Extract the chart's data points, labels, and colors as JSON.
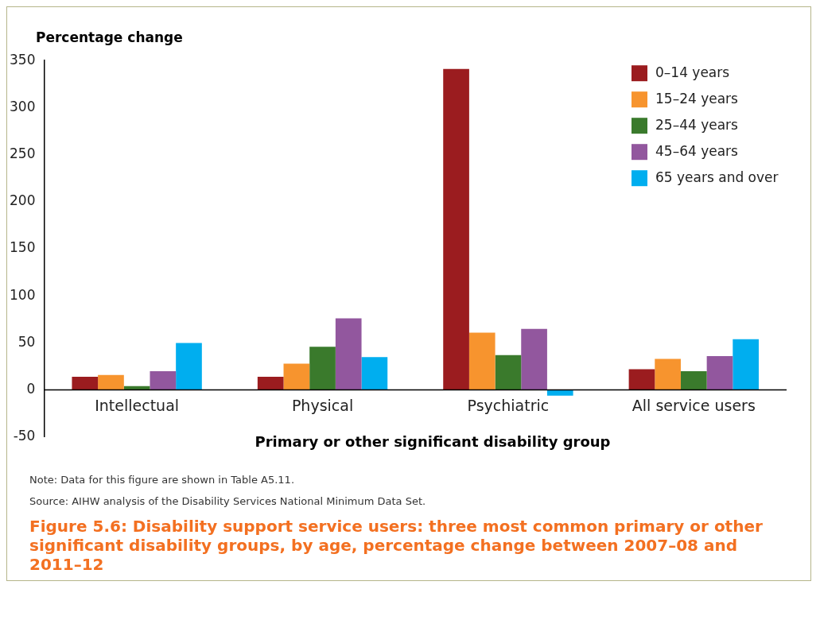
{
  "chart_data": {
    "type": "bar",
    "title": "Figure 5.6: Disability support service users: three most common primary or other significant disability groups, by age, percentage change between 2007–08 and 2011–12",
    "ylabel": "Percentage change",
    "xlabel": "Primary or other significant disability group",
    "categories": [
      "Intellectual",
      "Physical",
      "Psychiatric",
      "All service users"
    ],
    "series": [
      {
        "name": "0–14 years",
        "color": "#9b1c1f",
        "values": [
          14,
          14,
          341,
          22
        ]
      },
      {
        "name": "15–24 years",
        "color": "#f7942e",
        "values": [
          16,
          28,
          61,
          33
        ]
      },
      {
        "name": "25–44 years",
        "color": "#3a7a2c",
        "values": [
          4,
          46,
          37,
          20
        ]
      },
      {
        "name": "45–64 years",
        "color": "#92579e",
        "values": [
          20,
          76,
          65,
          36
        ]
      },
      {
        "name": "65 years and over",
        "color": "#00aeef",
        "values": [
          50,
          35,
          -6,
          54
        ]
      }
    ],
    "ylim": [
      -50,
      350
    ],
    "yticks": [
      -50,
      0,
      50,
      100,
      150,
      200,
      250,
      300,
      350
    ],
    "grid": false,
    "legend": "top right",
    "annotations": [
      "Note: Data for this figure are shown in Table A5.11.",
      "Source: AIHW analysis of the Disability Services National Minimum Data Set."
    ]
  }
}
